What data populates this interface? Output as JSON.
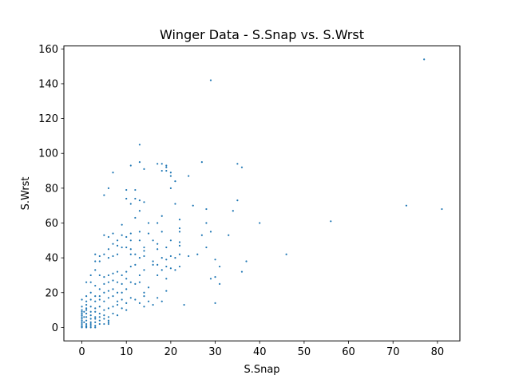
{
  "chart_data": {
    "type": "scatter",
    "title": "Winger Data - S.Snap vs. S.Wrst",
    "xlabel": "S.Snap",
    "ylabel": "S.Wrst",
    "xlim": [
      -4.05,
      85.05
    ],
    "ylim": [
      -7.7,
      161.7
    ],
    "xticks": [
      0,
      10,
      20,
      30,
      40,
      50,
      60,
      70,
      80
    ],
    "yticks": [
      0,
      20,
      40,
      60,
      80,
      100,
      120,
      140,
      160
    ],
    "grid": false,
    "point_color": "#1f77b4",
    "points": [
      [
        77,
        154
      ],
      [
        29,
        142
      ],
      [
        13,
        105
      ],
      [
        27,
        95
      ],
      [
        35,
        94
      ],
      [
        36,
        92
      ],
      [
        17,
        94
      ],
      [
        18,
        94
      ],
      [
        19,
        93
      ],
      [
        19,
        92
      ],
      [
        19,
        90
      ],
      [
        18,
        90
      ],
      [
        13,
        95
      ],
      [
        11,
        93
      ],
      [
        14,
        91
      ],
      [
        20,
        89
      ],
      [
        20,
        87
      ],
      [
        24,
        87
      ],
      [
        21,
        84
      ],
      [
        20,
        80
      ],
      [
        7,
        89
      ],
      [
        5,
        76
      ],
      [
        6,
        80
      ],
      [
        10,
        79
      ],
      [
        12,
        79
      ],
      [
        10,
        74
      ],
      [
        12,
        74
      ],
      [
        13,
        73
      ],
      [
        11,
        71
      ],
      [
        14,
        72
      ],
      [
        21,
        71
      ],
      [
        25,
        70
      ],
      [
        28,
        68
      ],
      [
        34,
        67
      ],
      [
        35,
        73
      ],
      [
        73,
        70
      ],
      [
        81,
        68
      ],
      [
        56,
        61
      ],
      [
        40,
        60
      ],
      [
        28,
        60
      ],
      [
        22,
        62
      ],
      [
        18,
        64
      ],
      [
        13,
        67
      ],
      [
        12,
        63
      ],
      [
        15,
        60
      ],
      [
        9,
        59
      ],
      [
        17,
        60
      ],
      [
        27,
        53
      ],
      [
        29,
        55
      ],
      [
        33,
        53
      ],
      [
        22,
        57
      ],
      [
        22,
        55
      ],
      [
        18,
        55
      ],
      [
        13,
        55
      ],
      [
        11,
        54
      ],
      [
        7,
        54
      ],
      [
        9,
        53
      ],
      [
        5,
        53
      ],
      [
        6,
        52
      ],
      [
        10,
        52
      ],
      [
        11,
        50
      ],
      [
        13,
        50
      ],
      [
        15,
        54
      ],
      [
        16,
        50
      ],
      [
        17,
        48
      ],
      [
        20,
        50
      ],
      [
        22,
        49
      ],
      [
        22,
        47
      ],
      [
        19,
        46
      ],
      [
        17,
        45
      ],
      [
        14,
        46
      ],
      [
        14,
        44
      ],
      [
        11,
        45
      ],
      [
        8,
        50
      ],
      [
        7,
        48
      ],
      [
        8,
        47
      ],
      [
        9,
        46
      ],
      [
        10,
        46
      ],
      [
        6,
        45
      ],
      [
        5,
        42
      ],
      [
        4,
        41
      ],
      [
        3,
        42
      ],
      [
        3,
        38
      ],
      [
        4,
        38
      ],
      [
        6,
        40
      ],
      [
        7,
        41
      ],
      [
        8,
        42
      ],
      [
        11,
        42
      ],
      [
        12,
        42
      ],
      [
        13,
        40
      ],
      [
        14,
        41
      ],
      [
        16,
        38
      ],
      [
        17,
        36
      ],
      [
        18,
        40
      ],
      [
        19,
        39
      ],
      [
        20,
        41
      ],
      [
        21,
        40
      ],
      [
        22,
        42
      ],
      [
        24,
        41
      ],
      [
        26,
        42
      ],
      [
        28,
        46
      ],
      [
        30,
        39
      ],
      [
        31,
        35
      ],
      [
        37,
        38
      ],
      [
        46,
        42
      ],
      [
        36,
        32
      ],
      [
        29,
        28
      ],
      [
        30,
        29
      ],
      [
        31,
        25
      ],
      [
        22,
        35
      ],
      [
        21,
        33
      ],
      [
        20,
        34
      ],
      [
        19,
        35
      ],
      [
        18,
        33
      ],
      [
        17,
        30
      ],
      [
        19,
        28
      ],
      [
        16,
        36
      ],
      [
        14,
        33
      ],
      [
        12,
        36
      ],
      [
        13,
        30
      ],
      [
        11,
        35
      ],
      [
        10,
        32
      ],
      [
        9,
        30
      ],
      [
        8,
        32
      ],
      [
        7,
        31
      ],
      [
        6,
        30
      ],
      [
        5,
        29
      ],
      [
        4,
        30
      ],
      [
        3,
        33
      ],
      [
        2,
        30
      ],
      [
        2,
        26
      ],
      [
        1,
        26
      ],
      [
        3,
        24
      ],
      [
        4,
        22
      ],
      [
        5,
        25
      ],
      [
        6,
        26
      ],
      [
        7,
        27
      ],
      [
        8,
        26
      ],
      [
        9,
        25
      ],
      [
        10,
        28
      ],
      [
        11,
        26
      ],
      [
        12,
        25
      ],
      [
        13,
        26
      ],
      [
        14,
        20
      ],
      [
        15,
        23
      ],
      [
        14,
        18
      ],
      [
        10,
        22
      ],
      [
        9,
        20
      ],
      [
        8,
        20
      ],
      [
        7,
        22
      ],
      [
        6,
        21
      ],
      [
        5,
        20
      ],
      [
        4,
        18
      ],
      [
        3,
        18
      ],
      [
        2,
        20
      ],
      [
        1,
        18
      ],
      [
        2,
        16
      ],
      [
        3,
        15
      ],
      [
        4,
        16
      ],
      [
        5,
        15
      ],
      [
        6,
        17
      ],
      [
        7,
        18
      ],
      [
        8,
        15
      ],
      [
        9,
        16
      ],
      [
        10,
        14
      ],
      [
        11,
        17
      ],
      [
        12,
        16
      ],
      [
        13,
        14
      ],
      [
        14,
        12
      ],
      [
        15,
        15
      ],
      [
        16,
        13
      ],
      [
        17,
        17
      ],
      [
        18,
        15
      ],
      [
        19,
        21
      ],
      [
        23,
        13
      ],
      [
        30,
        14
      ],
      [
        0,
        16
      ],
      [
        1,
        15
      ],
      [
        1,
        13
      ],
      [
        2,
        12
      ],
      [
        3,
        11
      ],
      [
        4,
        12
      ],
      [
        5,
        10
      ],
      [
        6,
        11
      ],
      [
        7,
        12
      ],
      [
        8,
        13
      ],
      [
        9,
        11
      ],
      [
        10,
        10
      ],
      [
        0,
        12
      ],
      [
        0,
        10
      ],
      [
        1,
        10
      ],
      [
        2,
        9
      ],
      [
        3,
        9
      ],
      [
        4,
        8
      ],
      [
        5,
        7
      ],
      [
        6,
        6
      ],
      [
        7,
        8
      ],
      [
        0,
        8
      ],
      [
        1,
        8
      ],
      [
        2,
        7
      ],
      [
        3,
        6
      ],
      [
        4,
        6
      ],
      [
        0,
        7
      ],
      [
        0,
        6
      ],
      [
        1,
        6
      ],
      [
        2,
        5
      ],
      [
        3,
        5
      ],
      [
        4,
        4
      ],
      [
        5,
        5
      ],
      [
        6,
        4
      ],
      [
        0,
        5
      ],
      [
        0,
        4
      ],
      [
        1,
        4
      ],
      [
        2,
        3
      ],
      [
        3,
        3
      ],
      [
        4,
        2
      ],
      [
        5,
        2
      ],
      [
        6,
        2
      ],
      [
        0,
        3
      ],
      [
        0,
        2
      ],
      [
        1,
        2
      ],
      [
        2,
        2
      ],
      [
        3,
        1
      ],
      [
        0,
        1
      ],
      [
        1,
        1
      ],
      [
        2,
        1
      ],
      [
        3,
        0
      ],
      [
        0,
        0
      ],
      [
        1,
        0
      ],
      [
        2,
        0
      ],
      [
        0,
        0.5
      ],
      [
        1,
        0.5
      ],
      [
        0.5,
        3
      ],
      [
        0.5,
        6
      ],
      [
        0.5,
        9
      ],
      [
        6,
        3
      ],
      [
        8,
        7
      ],
      [
        0,
        9
      ],
      [
        1,
        11
      ]
    ]
  }
}
